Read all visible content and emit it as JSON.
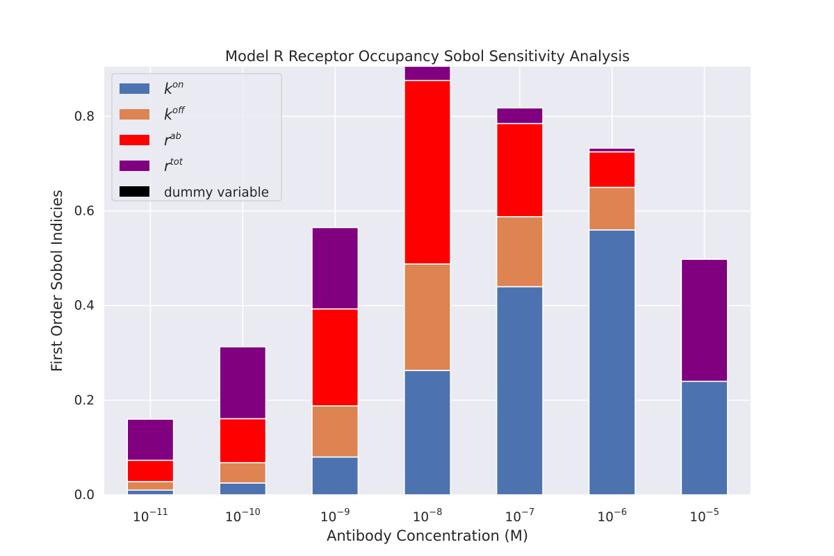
{
  "chart_data": {
    "type": "bar",
    "stacked": true,
    "title": "Model R Receptor Occupancy Sobol Sensitivity Analysis",
    "xlabel": "Antibody Concentration (M)",
    "ylabel": "First Order Sobol Indicies",
    "categories": [
      {
        "base": "10",
        "exp": "−11"
      },
      {
        "base": "10",
        "exp": "−10"
      },
      {
        "base": "10",
        "exp": "−9"
      },
      {
        "base": "10",
        "exp": "−8"
      },
      {
        "base": "10",
        "exp": "−7"
      },
      {
        "base": "10",
        "exp": "−6"
      },
      {
        "base": "10",
        "exp": "−5"
      }
    ],
    "ylim": [
      0,
      0.905
    ],
    "yticks": [
      {
        "value": 0.0,
        "label": "0.0"
      },
      {
        "value": 0.2,
        "label": "0.2"
      },
      {
        "value": 0.4,
        "label": "0.4"
      },
      {
        "value": 0.6,
        "label": "0.6"
      },
      {
        "value": 0.8,
        "label": "0.8"
      }
    ],
    "grid": true,
    "legend_position": "top-left",
    "series": [
      {
        "key": "kon",
        "label_base": "k",
        "label_sup": "on",
        "color": "#4c72b0",
        "values": [
          0.01,
          0.025,
          0.08,
          0.263,
          0.44,
          0.56,
          0.24
        ]
      },
      {
        "key": "koff",
        "label_base": "k",
        "label_sup": "off",
        "color": "#dd8452",
        "values": [
          0.018,
          0.043,
          0.108,
          0.225,
          0.148,
          0.09,
          0.0
        ]
      },
      {
        "key": "rab",
        "label_base": "r",
        "label_sup": "ab",
        "color": "#ff0000",
        "values": [
          0.045,
          0.093,
          0.205,
          0.388,
          0.197,
          0.075,
          0.0
        ]
      },
      {
        "key": "rtot",
        "label_base": "r",
        "label_sup": "tot",
        "color": "#800080",
        "values": [
          0.087,
          0.152,
          0.172,
          0.03,
          0.033,
          0.008,
          0.258
        ]
      },
      {
        "key": "dummy",
        "label_plain": "dummy variable",
        "color": "#000000",
        "values": [
          0,
          0,
          0,
          0,
          0,
          0,
          0
        ]
      }
    ]
  }
}
